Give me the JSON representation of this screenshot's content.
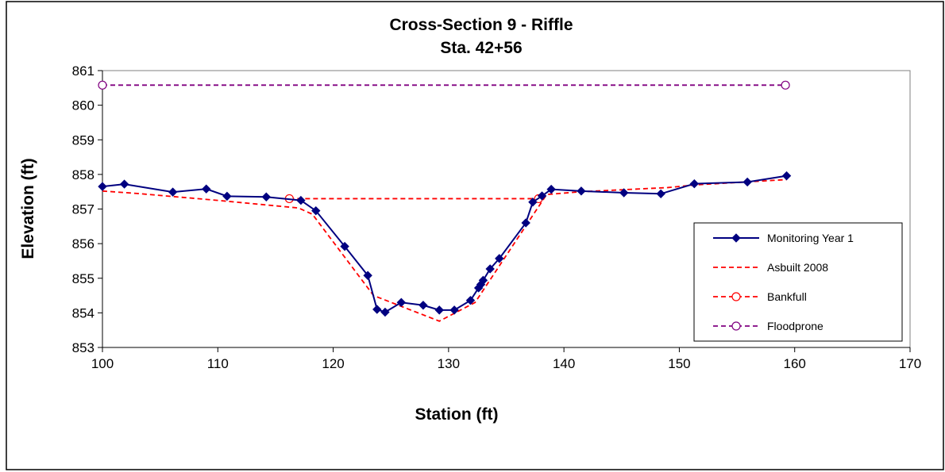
{
  "chart_data": {
    "type": "line",
    "title": "Cross-Section 9 - Riffle",
    "subtitle": "Sta. 42+56",
    "xlabel": "Station (ft)",
    "ylabel": "Elevation (ft)",
    "xlim": [
      100,
      170
    ],
    "ylim": [
      853,
      861
    ],
    "xticks": [
      "100",
      "110",
      "120",
      "130",
      "140",
      "150",
      "160",
      "170"
    ],
    "yticks": [
      "853",
      "854",
      "855",
      "856",
      "857",
      "858",
      "859",
      "860",
      "861"
    ],
    "grid": false,
    "legend_position": "right",
    "series": [
      {
        "name": "Monitoring Year 1",
        "color": "#000080",
        "style": "solid-diamond",
        "x": [
          100.0,
          101.9,
          106.1,
          109.0,
          110.8,
          114.2,
          117.2,
          118.5,
          121.0,
          123.0,
          123.8,
          124.5,
          125.9,
          127.8,
          129.2,
          130.5,
          131.9,
          132.6,
          132.8,
          133.0,
          133.6,
          134.4,
          136.7,
          137.3,
          138.1,
          138.9,
          141.5,
          145.2,
          148.4,
          151.3,
          155.9,
          159.3
        ],
        "y": [
          857.65,
          857.72,
          857.49,
          857.58,
          857.37,
          857.35,
          857.25,
          856.95,
          855.92,
          855.08,
          854.1,
          854.02,
          854.3,
          854.22,
          854.08,
          854.08,
          854.36,
          854.72,
          854.82,
          854.94,
          855.27,
          855.57,
          856.6,
          857.2,
          857.38,
          857.57,
          857.52,
          857.47,
          857.44,
          857.73,
          857.78,
          857.96
        ]
      },
      {
        "name": "Asbuilt 2008",
        "color": "#ff0000",
        "style": "dashed",
        "x": [
          100.0,
          103.0,
          110.0,
          117.0,
          118.2,
          123.5,
          129.2,
          132.3,
          138.5,
          141.5,
          149.0,
          151.5,
          159.3
        ],
        "y": [
          857.52,
          857.45,
          857.25,
          857.03,
          856.85,
          854.5,
          853.76,
          854.3,
          857.42,
          857.5,
          857.62,
          857.7,
          857.85
        ]
      },
      {
        "name": "Bankfull",
        "color": "#ff0000",
        "style": "dashed-open-circle",
        "x": [
          116.2,
          137.8
        ],
        "y": [
          857.3,
          857.3
        ]
      },
      {
        "name": "Floodprone",
        "color": "#800080",
        "style": "dashed-open-circle",
        "x": [
          100.0,
          159.2
        ],
        "y": [
          860.58,
          860.58
        ]
      }
    ]
  }
}
